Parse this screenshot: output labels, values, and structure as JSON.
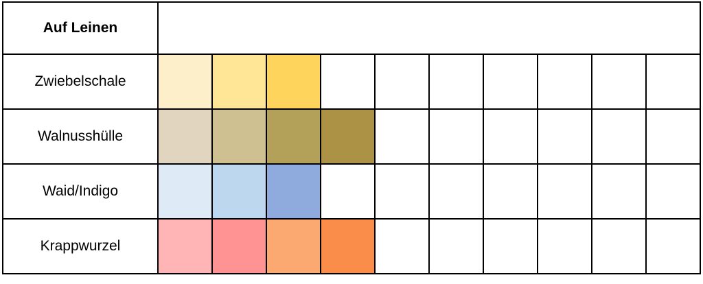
{
  "table": {
    "title": "Auf Leinen",
    "num_swatch_columns": 10,
    "border_color": "#000000",
    "rows": [
      {
        "label": "Zwiebelschale",
        "swatches": [
          "#FCEFC9",
          "#FFE596",
          "#FFD45C"
        ]
      },
      {
        "label": "Walnusshülle",
        "swatches": [
          "#E2D5BF",
          "#CFC092",
          "#B3A159",
          "#AB9245"
        ]
      },
      {
        "label": "Waid/Indigo",
        "swatches": [
          "#DEEAF6",
          "#BDD7EE",
          "#8FAADC"
        ]
      },
      {
        "label": "Krappwurzel",
        "swatches": [
          "#FFB5B5",
          "#FF9292",
          "#FBA871",
          "#FA8D49"
        ]
      }
    ]
  }
}
